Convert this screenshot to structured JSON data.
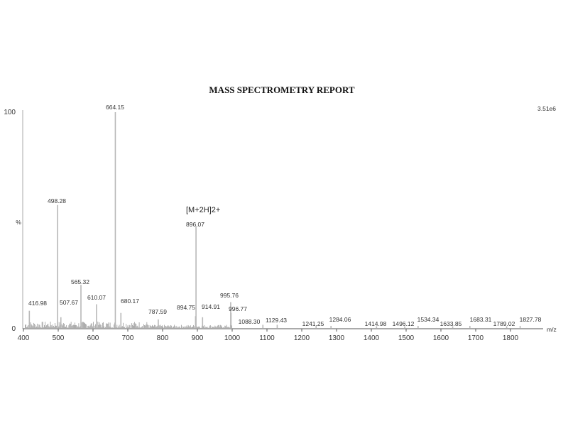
{
  "chart_data": {
    "type": "bar",
    "title": "MASS SPECTROMETRY REPORT",
    "xlabel": "m/z",
    "ylabel": "%",
    "scale_label": "3.51e6",
    "xlim": [
      400,
      1900
    ],
    "ylim": [
      0,
      100
    ],
    "y_ticks": [
      "0",
      "100"
    ],
    "x_ticks": [
      "400",
      "500",
      "600",
      "700",
      "800",
      "900",
      "1000",
      "1100",
      "1200",
      "1300",
      "1400",
      "1500",
      "1600",
      "1700",
      "1800"
    ],
    "grid": false,
    "bar_color": "#b8b8b8",
    "peaks": [
      {
        "mz": 416.98,
        "intensity": 8,
        "label": "416.98"
      },
      {
        "mz": 498.28,
        "intensity": 57,
        "label": "498.28"
      },
      {
        "mz": 507.67,
        "intensity": 5,
        "label": "507.67"
      },
      {
        "mz": 565.32,
        "intensity": 20,
        "label": "565.32"
      },
      {
        "mz": 610.07,
        "intensity": 11,
        "label": "610.07"
      },
      {
        "mz": 664.15,
        "intensity": 100,
        "label": "664.15"
      },
      {
        "mz": 680.17,
        "intensity": 7,
        "label": "680.17"
      },
      {
        "mz": 787.59,
        "intensity": 4,
        "label": "787.59"
      },
      {
        "mz": 894.75,
        "intensity": 5.5,
        "label": "894.75"
      },
      {
        "mz": 896.07,
        "intensity": 47,
        "label": "896.07",
        "annotation": "[M+2H]2+"
      },
      {
        "mz": 914.91,
        "intensity": 5,
        "label": "914.91"
      },
      {
        "mz": 995.76,
        "intensity": 12,
        "label": "995.76"
      },
      {
        "mz": 996.77,
        "intensity": 7,
        "label": "996.77"
      },
      {
        "mz": 1088.3,
        "intensity": 1.5,
        "label": "1088.30"
      },
      {
        "mz": 1129.43,
        "intensity": 1.5,
        "label": "1129.43"
      },
      {
        "mz": 1241.25,
        "intensity": 1,
        "label": "1241.25"
      },
      {
        "mz": 1284.06,
        "intensity": 1,
        "label": "1284.06"
      },
      {
        "mz": 1414.98,
        "intensity": 0.8,
        "label": "1414.98"
      },
      {
        "mz": 1496.12,
        "intensity": 0.8,
        "label": "1496.12"
      },
      {
        "mz": 1534.34,
        "intensity": 1,
        "label": "1534.34"
      },
      {
        "mz": 1633.85,
        "intensity": 0.8,
        "label": "1633.85"
      },
      {
        "mz": 1683.31,
        "intensity": 1,
        "label": "1683.31"
      },
      {
        "mz": 1789.02,
        "intensity": 0.8,
        "label": "1789.02"
      },
      {
        "mz": 1827.78,
        "intensity": 1,
        "label": "1827.78"
      }
    ]
  }
}
